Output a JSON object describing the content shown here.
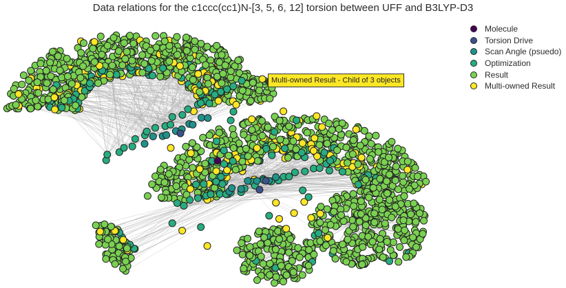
{
  "title": "Data relations for the c1ccc(cc1)N-[3, 5, 6, 12] torsion between UFF and B3LYP-D3",
  "legend": [
    {
      "label": "Molecule",
      "color": "#440154"
    },
    {
      "label": "Torsion Drive",
      "color": "#3b528b"
    },
    {
      "label": "Scan Angle (psuedo)",
      "color": "#21918c"
    },
    {
      "label": "Optimization",
      "color": "#27ad81"
    },
    {
      "label": "Result",
      "color": "#7ad151"
    },
    {
      "label": "Multi-owned Result",
      "color": "#fde725"
    }
  ],
  "tooltip": "Multi-owned Result - Child of 3 objects",
  "colors": {
    "edge": "#a8a8a8",
    "node_border": "#222222",
    "tooltip_bg": "#fde725"
  }
}
